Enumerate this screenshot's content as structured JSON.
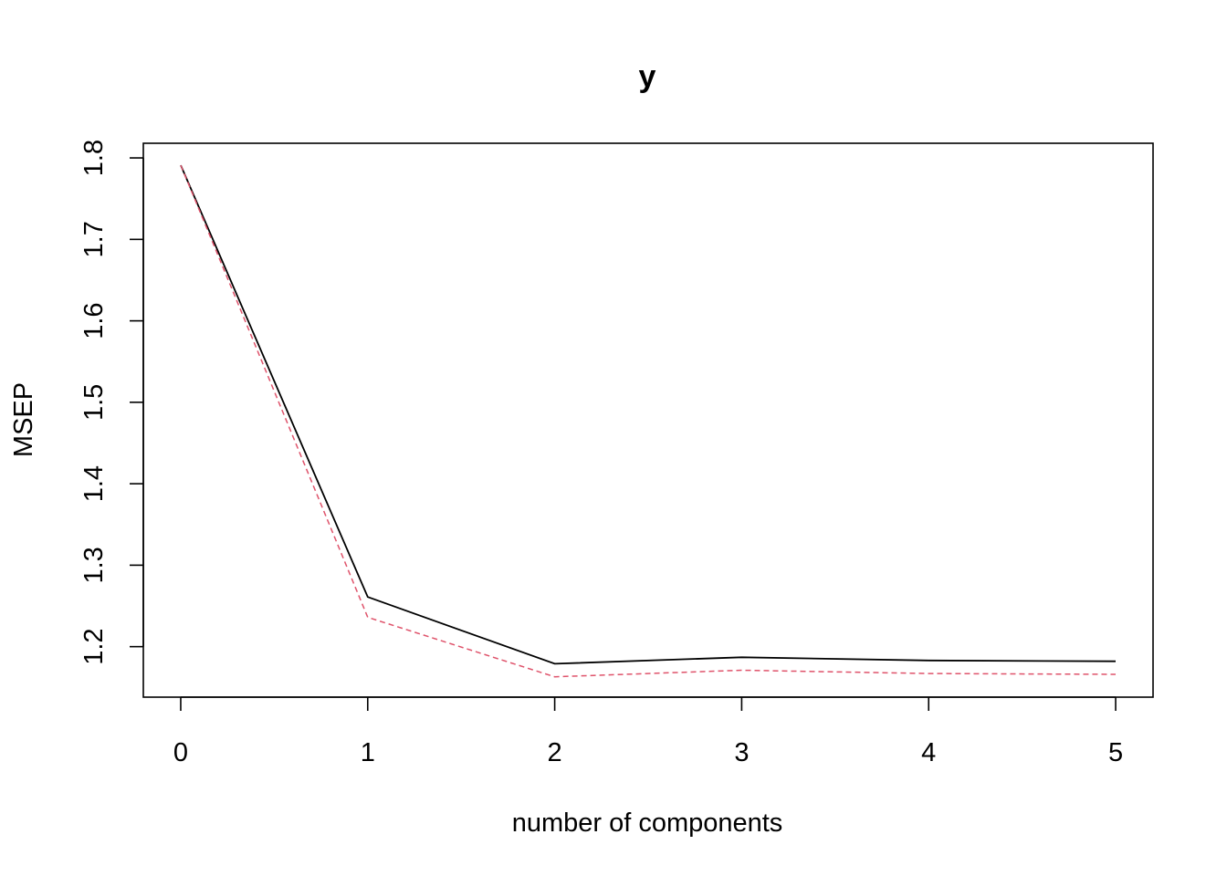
{
  "chart_data": {
    "type": "line",
    "title": "y",
    "xlabel": "number of components",
    "ylabel": "MSEP",
    "x": [
      0,
      1,
      2,
      3,
      4,
      5
    ],
    "xticks": [
      "0",
      "1",
      "2",
      "3",
      "4",
      "5"
    ],
    "yticks": [
      "1.2",
      "1.3",
      "1.4",
      "1.5",
      "1.6",
      "1.7",
      "1.8"
    ],
    "xlim": [
      -0.2,
      5.2
    ],
    "ylim": [
      1.138,
      1.818
    ],
    "grid": false,
    "series": [
      {
        "values": [
          1.791,
          1.261,
          1.179,
          1.187,
          1.183,
          1.182
        ],
        "color": "#000000",
        "style": "solid"
      },
      {
        "values": [
          1.791,
          1.236,
          1.163,
          1.171,
          1.167,
          1.166
        ],
        "color": "#DF536B",
        "style": "dashed"
      }
    ]
  }
}
